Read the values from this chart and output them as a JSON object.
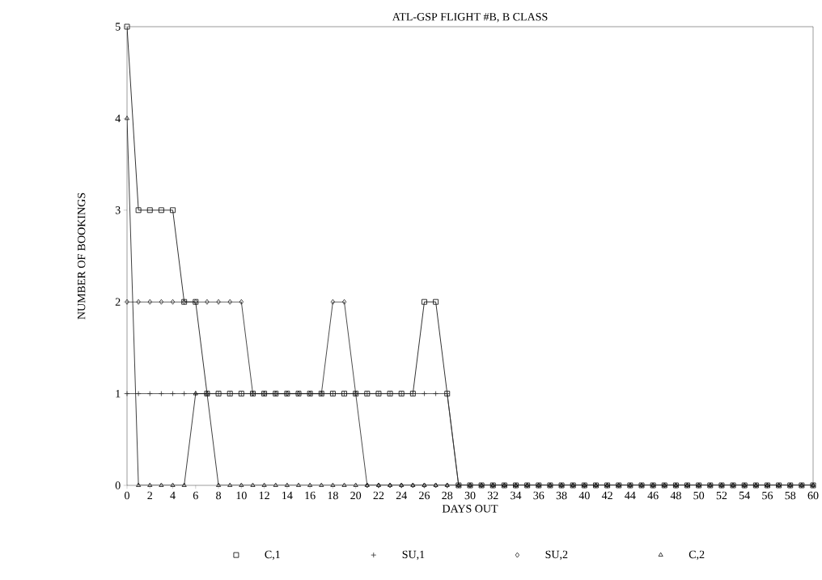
{
  "chart_data": {
    "type": "line",
    "title": "ATL-GSP FLIGHT #B, B CLASS",
    "xlabel": "DAYS OUT",
    "ylabel": "NUMBER OF BOOKINGS",
    "x": [
      0,
      1,
      2,
      3,
      4,
      5,
      6,
      7,
      8,
      9,
      10,
      11,
      12,
      13,
      14,
      15,
      16,
      17,
      18,
      19,
      20,
      21,
      22,
      23,
      24,
      25,
      26,
      27,
      28,
      29,
      30,
      31,
      32,
      33,
      34,
      35,
      36,
      37,
      38,
      39,
      40,
      41,
      42,
      43,
      44,
      45,
      46,
      47,
      48,
      49,
      50,
      51,
      52,
      53,
      54,
      55,
      56,
      57,
      58,
      59,
      60
    ],
    "series": [
      {
        "name": "C,1",
        "color": "#000000",
        "marker": "square",
        "values": [
          5,
          3,
          3,
          3,
          3,
          2,
          2,
          1,
          1,
          1,
          1,
          1,
          1,
          1,
          1,
          1,
          1,
          1,
          1,
          1,
          1,
          1,
          1,
          1,
          1,
          1,
          2,
          2,
          1,
          0,
          0,
          0,
          0,
          0,
          0,
          0,
          0,
          0,
          0,
          0,
          0,
          0,
          0,
          0,
          0,
          0,
          0,
          0,
          0,
          0,
          0,
          0,
          0,
          0,
          0,
          0,
          0,
          0,
          0,
          0,
          0
        ]
      },
      {
        "name": "SU,1",
        "color": "#303030",
        "marker": "cross",
        "values": [
          1,
          1,
          1,
          1,
          1,
          1,
          1,
          1,
          1,
          1,
          1,
          1,
          1,
          1,
          1,
          1,
          1,
          1,
          1,
          1,
          1,
          1,
          1,
          1,
          1,
          1,
          1,
          1,
          1,
          0,
          0,
          0,
          0,
          0,
          0,
          0,
          0,
          0,
          0,
          0,
          0,
          0,
          0,
          0,
          0,
          0,
          0,
          0,
          0,
          0,
          0,
          0,
          0,
          0,
          0,
          0,
          0,
          0,
          0,
          0,
          0
        ]
      },
      {
        "name": "SU,2",
        "color": "#202020",
        "marker": "diamond",
        "values": [
          2,
          2,
          2,
          2,
          2,
          2,
          2,
          2,
          2,
          2,
          2,
          1,
          1,
          1,
          1,
          1,
          1,
          1,
          2,
          2,
          1,
          0,
          0,
          0,
          0,
          0,
          0,
          0,
          0,
          0,
          0,
          0,
          0,
          0,
          0,
          0,
          0,
          0,
          0,
          0,
          0,
          0,
          0,
          0,
          0,
          0,
          0,
          0,
          0,
          0,
          0,
          0,
          0,
          0,
          0,
          0,
          0,
          0,
          0,
          0,
          0
        ]
      },
      {
        "name": "C,2",
        "color": "#101010",
        "marker": "triangle",
        "values": [
          4,
          0,
          0,
          0,
          0,
          0,
          1,
          1,
          0,
          0,
          0,
          0,
          0,
          0,
          0,
          0,
          0,
          0,
          0,
          0,
          0,
          0,
          0,
          0,
          0,
          0,
          0,
          0,
          0,
          0,
          0,
          0,
          0,
          0,
          0,
          0,
          0,
          0,
          0,
          0,
          0,
          0,
          0,
          0,
          0,
          0,
          0,
          0,
          0,
          0,
          0,
          0,
          0,
          0,
          0,
          0,
          0,
          0,
          0,
          0,
          0
        ]
      }
    ],
    "xlim": [
      0,
      60
    ],
    "xticks": [
      0,
      2,
      4,
      6,
      8,
      10,
      12,
      14,
      16,
      18,
      20,
      22,
      24,
      26,
      28,
      30,
      32,
      34,
      36,
      38,
      40,
      42,
      44,
      46,
      48,
      50,
      52,
      54,
      56,
      58,
      60
    ],
    "ylim": [
      0,
      5
    ],
    "yticks": [
      0,
      1,
      2,
      3,
      4,
      5
    ],
    "grid": false,
    "legend": "bottom",
    "line_style": "solid"
  }
}
